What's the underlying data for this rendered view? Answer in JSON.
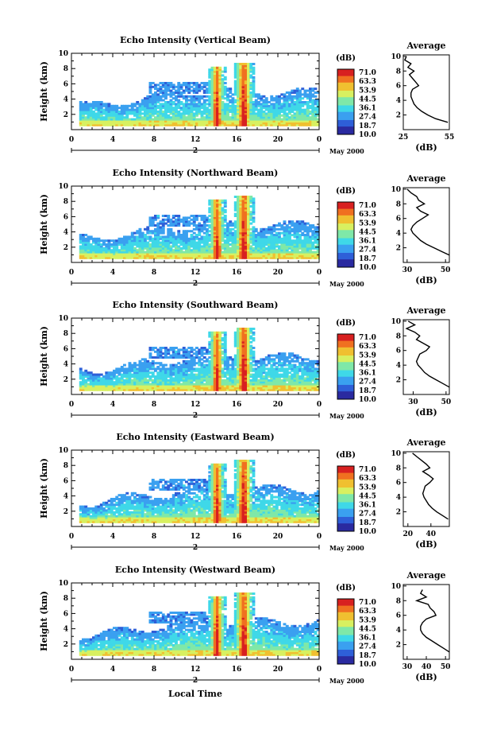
{
  "chart_data": [
    {
      "type": "heatmap",
      "title": "Echo Intensity (Vertical Beam)",
      "ylabel": "Height (km)",
      "xlim": [
        0,
        24
      ],
      "ylim": [
        0,
        10
      ],
      "x_ticks": [
        "0",
        "4",
        "8",
        "12",
        "16",
        "20",
        "0"
      ],
      "y_ticks": [
        "2",
        "4",
        "6",
        "8",
        "10"
      ],
      "day_label": "2",
      "date_label": "May 2000",
      "colorbar_unit": "(dB)",
      "colorbar_labels": [
        "71.0",
        "63.3",
        "53.9",
        "44.5",
        "36.1",
        "27.4",
        "18.7",
        "10.0"
      ],
      "average_title": "Average",
      "average_xlabel": "(dB)",
      "average_x_ticks": [
        "25",
        "55"
      ],
      "average_xlim": [
        25,
        55
      ],
      "average_profile": {
        "height_km": [
          10,
          9.5,
          9,
          8.5,
          8,
          7.5,
          7,
          6.5,
          6,
          5.5,
          5,
          4.5,
          4,
          3.5,
          3,
          2.5,
          2,
          1.5,
          1
        ],
        "db": [
          27,
          26,
          30,
          28,
          32,
          29,
          31,
          33,
          35,
          31,
          30,
          30,
          31,
          32,
          34,
          37,
          41,
          46,
          54
        ]
      }
    },
    {
      "type": "heatmap",
      "title": "Echo Intensity (Northward Beam)",
      "ylabel": "Height (km)",
      "xlim": [
        0,
        24
      ],
      "ylim": [
        0,
        10
      ],
      "x_ticks": [
        "0",
        "4",
        "8",
        "12",
        "16",
        "20",
        "0"
      ],
      "y_ticks": [
        "2",
        "4",
        "6",
        "8",
        "10"
      ],
      "day_label": "2",
      "date_label": "May 2000",
      "colorbar_unit": "(dB)",
      "colorbar_labels": [
        "71.0",
        "63.3",
        "53.9",
        "44.5",
        "36.1",
        "27.4",
        "18.7",
        "10.0"
      ],
      "average_title": "Average",
      "average_xlabel": "(dB)",
      "average_x_ticks": [
        "30",
        "50"
      ],
      "average_xlim": [
        28,
        52
      ],
      "average_profile": {
        "height_km": [
          10,
          9.5,
          9,
          8.5,
          8,
          7.5,
          7,
          6.5,
          6,
          5.5,
          5,
          4.5,
          4,
          3.5,
          3,
          2.5,
          2,
          1.5,
          1
        ],
        "db": [
          30,
          32,
          35,
          36,
          39,
          35,
          37,
          41,
          38,
          35,
          33,
          32,
          33,
          35,
          37,
          40,
          44,
          48,
          52
        ]
      }
    },
    {
      "type": "heatmap",
      "title": "Echo Intensity (Southward Beam)",
      "ylabel": "Height (km)",
      "xlim": [
        0,
        24
      ],
      "ylim": [
        0,
        10
      ],
      "x_ticks": [
        "0",
        "4",
        "8",
        "12",
        "16",
        "20",
        "0"
      ],
      "y_ticks": [
        "2",
        "4",
        "6",
        "8",
        "10"
      ],
      "day_label": "2",
      "date_label": "May 2000",
      "colorbar_unit": "(dB)",
      "colorbar_labels": [
        "71.0",
        "63.3",
        "53.9",
        "44.5",
        "36.1",
        "27.4",
        "18.7",
        "10.0"
      ],
      "average_title": "Average",
      "average_xlabel": "(dB)",
      "average_x_ticks": [
        "30",
        "50"
      ],
      "average_xlim": [
        24,
        52
      ],
      "average_profile": {
        "height_km": [
          10,
          9.5,
          9,
          8.5,
          8,
          7.5,
          7,
          6.5,
          6,
          5.5,
          5,
          4.5,
          4,
          3.5,
          3,
          2.5,
          2,
          1.5,
          1
        ],
        "db": [
          27,
          31,
          26,
          31,
          34,
          32,
          36,
          40,
          38,
          34,
          33,
          32,
          33,
          35,
          37,
          40,
          44,
          48,
          52
        ]
      }
    },
    {
      "type": "heatmap",
      "title": "Echo Intensity (Eastward Beam)",
      "ylabel": "Height (km)",
      "xlim": [
        0,
        24
      ],
      "ylim": [
        0,
        10
      ],
      "x_ticks": [
        "0",
        "4",
        "8",
        "12",
        "16",
        "20",
        "0"
      ],
      "y_ticks": [
        "2",
        "4",
        "6",
        "8",
        "10"
      ],
      "day_label": "2",
      "date_label": "May 2000",
      "colorbar_unit": "(dB)",
      "colorbar_labels": [
        "71.0",
        "63.3",
        "53.9",
        "44.5",
        "36.1",
        "27.4",
        "18.7",
        "10.0"
      ],
      "average_title": "Average",
      "average_xlabel": "(dB)",
      "average_x_ticks": [
        "20",
        "40"
      ],
      "average_xlim": [
        16,
        56
      ],
      "average_profile": {
        "height_km": [
          10,
          9.5,
          9,
          8.5,
          8,
          7.5,
          7,
          6.5,
          6,
          5.5,
          5,
          4.5,
          4,
          3.5,
          3,
          2.5,
          2,
          1.5,
          1
        ],
        "db": [
          24,
          28,
          32,
          36,
          39,
          33,
          38,
          42,
          39,
          35,
          34,
          33,
          34,
          36,
          38,
          41,
          45,
          50,
          55
        ]
      }
    },
    {
      "type": "heatmap",
      "title": "Echo Intensity (Westward Beam)",
      "ylabel": "Height (km)",
      "xlim": [
        0,
        24
      ],
      "ylim": [
        0,
        10
      ],
      "x_ticks": [
        "0",
        "4",
        "8",
        "12",
        "16",
        "20",
        "0"
      ],
      "y_ticks": [
        "2",
        "4",
        "6",
        "8",
        "10"
      ],
      "day_label": "2",
      "date_label": "May 2000",
      "colorbar_unit": "(dB)",
      "colorbar_labels": [
        "71.0",
        "63.3",
        "53.9",
        "44.5",
        "36.1",
        "27.4",
        "18.7",
        "10.0"
      ],
      "average_title": "Average",
      "average_xlabel": "(dB)",
      "average_x_ticks": [
        "30",
        "40",
        "50"
      ],
      "average_xlim": [
        28,
        52
      ],
      "average_profile": {
        "height_km": [
          9.5,
          9,
          8.5,
          8,
          7.5,
          7,
          6.5,
          6,
          5.5,
          5,
          4.5,
          4,
          3.5,
          3,
          2.5,
          2,
          1.5,
          1
        ],
        "db": [
          38,
          37,
          40,
          35,
          41,
          42,
          44,
          45,
          40,
          38,
          37,
          37,
          38,
          40,
          43,
          46,
          49,
          52
        ]
      }
    }
  ],
  "xlabel": "Local Time",
  "colors": {
    "map": [
      "#2a2aa0",
      "#2e5fd8",
      "#3aa0f0",
      "#3fd8e8",
      "#7fe8a8",
      "#d8f060",
      "#f0c030",
      "#f07020",
      "#d82020"
    ]
  }
}
